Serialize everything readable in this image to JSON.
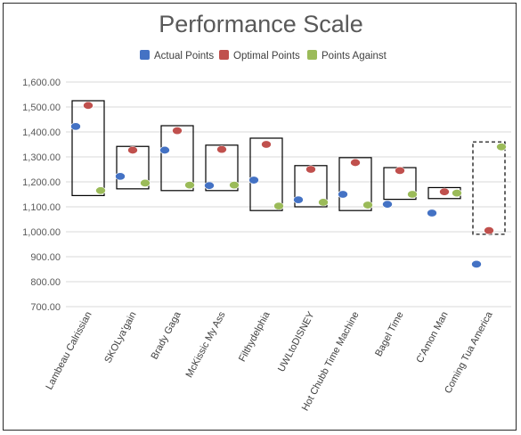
{
  "chart_data": {
    "type": "scatter",
    "title": "Performance Scale",
    "xlabel": "",
    "ylabel": "",
    "ylim": [
      700,
      1600
    ],
    "ytick_step": 100,
    "ytick_labels": [
      "700.00",
      "800.00",
      "900.00",
      "1,000.00",
      "1,100.00",
      "1,200.00",
      "1,300.00",
      "1,400.00",
      "1,500.00",
      "1,600.00"
    ],
    "grid": true,
    "legend_position": "top-center",
    "categories": [
      "Lambeau Calrissian",
      "SKOLya'gain",
      "Brady Gaga",
      "McKissic My Ass",
      "Filthydelphia",
      "UWLtoDISNEY",
      "Hot Chubb Time Machine",
      "Bagel Time",
      "C'Amon Man",
      "Coming Tua America"
    ],
    "series": [
      {
        "name": "Actual Points",
        "color": "#4472c4",
        "values": [
          1422,
          1222,
          1327,
          1185,
          1207,
          1128,
          1150,
          1110,
          1075,
          870
        ]
      },
      {
        "name": "Optimal Points",
        "color": "#c0504d",
        "values": [
          1506,
          1327,
          1405,
          1330,
          1350,
          1250,
          1277,
          1245,
          1160,
          1005
        ]
      },
      {
        "name": "Points Against",
        "color": "#9bbb59",
        "values": [
          1165,
          1195,
          1187,
          1187,
          1103,
          1118,
          1107,
          1150,
          1155,
          1340
        ]
      }
    ],
    "range_boxes": [
      {
        "low": 1145,
        "high": 1525,
        "style": "solid"
      },
      {
        "low": 1172,
        "high": 1342,
        "style": "solid"
      },
      {
        "low": 1165,
        "high": 1425,
        "style": "solid"
      },
      {
        "low": 1165,
        "high": 1347,
        "style": "solid"
      },
      {
        "low": 1085,
        "high": 1375,
        "style": "solid"
      },
      {
        "low": 1100,
        "high": 1265,
        "style": "solid"
      },
      {
        "low": 1085,
        "high": 1297,
        "style": "solid"
      },
      {
        "low": 1130,
        "high": 1257,
        "style": "solid"
      },
      {
        "low": 1133,
        "high": 1177,
        "style": "solid"
      },
      {
        "low": 990,
        "high": 1360,
        "style": "dashed"
      }
    ]
  }
}
